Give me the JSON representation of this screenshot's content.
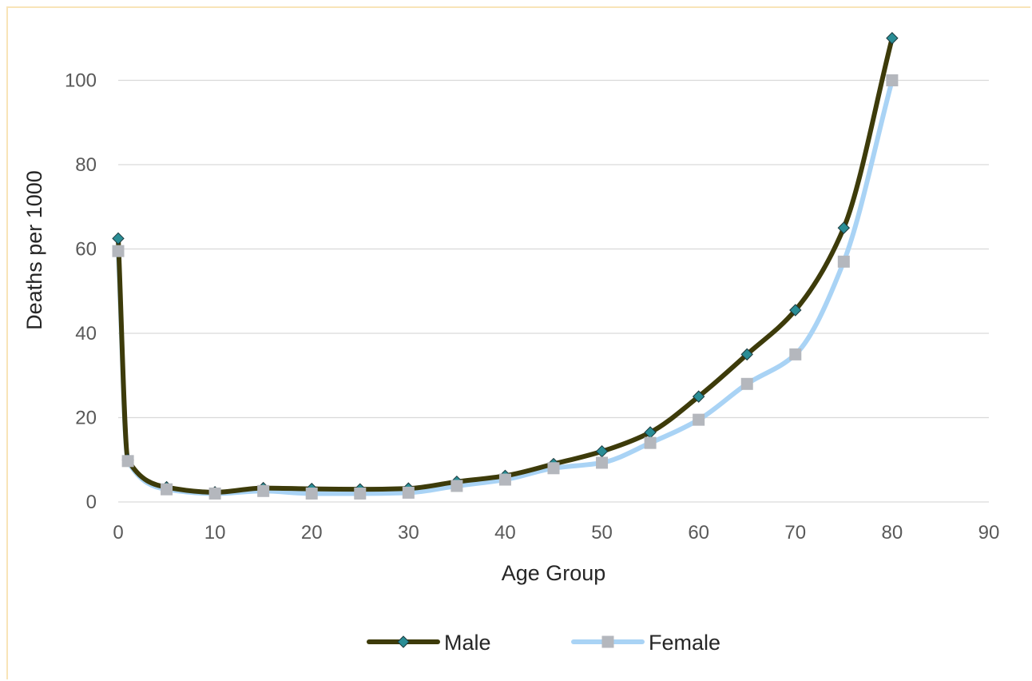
{
  "chart_data": {
    "type": "line",
    "title": "",
    "xlabel": "Age Group",
    "ylabel": "Deaths per 1000",
    "xlim": [
      0,
      90
    ],
    "ylim": [
      0,
      110
    ],
    "xticks": [
      0,
      10,
      20,
      30,
      40,
      50,
      60,
      70,
      80,
      90
    ],
    "yticks": [
      0,
      20,
      40,
      60,
      80,
      100
    ],
    "grid": "horizontal",
    "legend_position": "bottom",
    "smoothed": true,
    "series": [
      {
        "name": "Male",
        "color": "#3d3b0a",
        "marker": "diamond",
        "marker_color": "#2a8d95",
        "x": [
          0,
          1,
          5,
          10,
          15,
          20,
          25,
          30,
          35,
          40,
          45,
          50,
          55,
          60,
          65,
          70,
          75,
          80
        ],
        "y": [
          62.5,
          10,
          3.5,
          2.3,
          3.3,
          3.1,
          3,
          3.2,
          4.8,
          6.2,
          9,
          12,
          16.5,
          25,
          35,
          45.5,
          65,
          110
        ]
      },
      {
        "name": "Female",
        "color": "#a9d3f5",
        "marker": "square",
        "marker_color": "#b4b7bd",
        "x": [
          0,
          1,
          5,
          10,
          15,
          20,
          25,
          30,
          35,
          40,
          45,
          50,
          55,
          60,
          65,
          70,
          75,
          80
        ],
        "y": [
          59.5,
          9.7,
          3,
          2,
          2.6,
          2,
          2,
          2.2,
          3.8,
          5.3,
          8,
          9.3,
          14,
          19.5,
          28,
          35,
          57,
          100
        ]
      }
    ]
  }
}
